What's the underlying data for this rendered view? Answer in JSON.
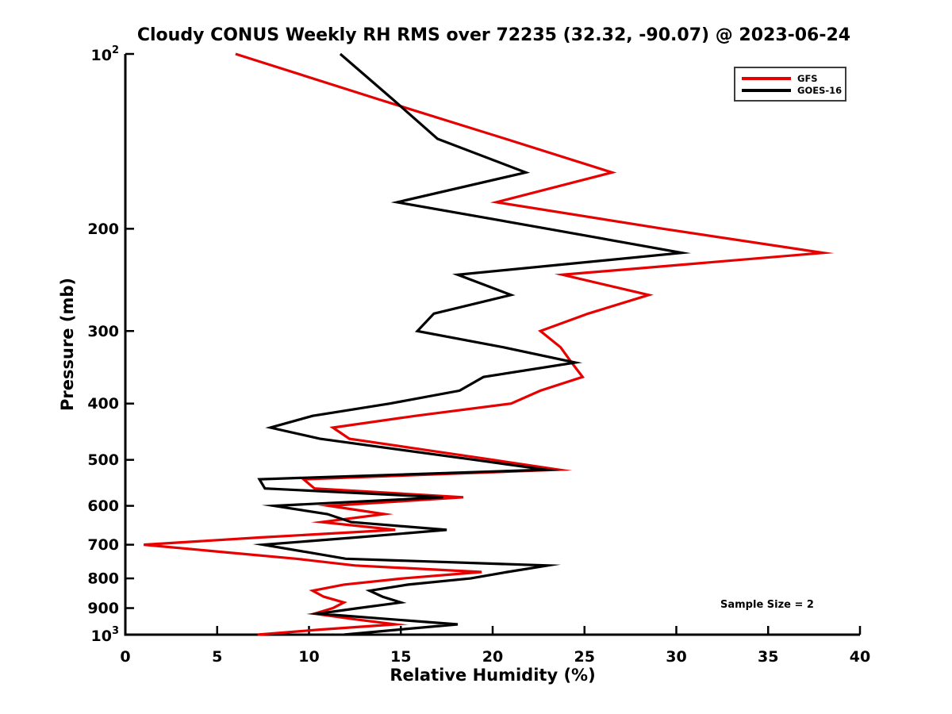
{
  "title": "Cloudy CONUS Weekly RH RMS over 72235 (32.32, -90.07) @ 2023-06-24",
  "annotation": "Sample Size = 2",
  "axes": {
    "x": {
      "label": "Relative Humidity (%)",
      "range": [
        0,
        40
      ],
      "ticks": [
        0,
        5,
        10,
        15,
        20,
        25,
        30,
        35,
        40
      ],
      "tick_labels": [
        "0",
        "5",
        "10",
        "15",
        "20",
        "25",
        "30",
        "35",
        "40"
      ]
    },
    "y": {
      "label": "Pressure (mb)",
      "scale": "log",
      "inverted": true,
      "range": [
        100,
        1000
      ],
      "ticks": [
        100,
        200,
        300,
        400,
        500,
        600,
        700,
        800,
        900,
        1000
      ],
      "tick_label_values": [
        200,
        300,
        400,
        500,
        600,
        700,
        800,
        900
      ],
      "tick_labels": [
        "200",
        "300",
        "400",
        "500",
        "600",
        "700",
        "800",
        "900"
      ],
      "top_tick": {
        "base": "10",
        "exp": "2"
      },
      "bottom_tick": {
        "base": "10",
        "exp": "3"
      }
    }
  },
  "legend": {
    "position": "top-right",
    "items": [
      {
        "label": "GFS",
        "color": "#e60000"
      },
      {
        "label": "GOES-16",
        "color": "#000000"
      }
    ]
  },
  "colors": {
    "background": "#ffffff",
    "axis": "#000000",
    "text": "#000000"
  },
  "chart_data": {
    "type": "line",
    "title": "Cloudy CONUS Weekly RH RMS over 72235 (32.32, -90.07) @ 2023-06-24",
    "xlabel": "Relative Humidity (%)",
    "ylabel": "Pressure (mb)",
    "xlim": [
      0,
      40
    ],
    "ylim_mb": [
      100,
      1000
    ],
    "y_scale": "log-inverted",
    "grid": false,
    "legend_position": "top-right",
    "sample_size": 2,
    "pressure_levels_mb": [
      100,
      120,
      140,
      160,
      180,
      200,
      220,
      240,
      260,
      280,
      300,
      320,
      340,
      360,
      380,
      400,
      420,
      440,
      460,
      480,
      500,
      520,
      540,
      560,
      580,
      600,
      620,
      640,
      660,
      680,
      700,
      720,
      740,
      760,
      780,
      800,
      820,
      840,
      860,
      880,
      900,
      920,
      940,
      960,
      980,
      1000
    ],
    "series": [
      {
        "name": "GFS",
        "color": "#e60000",
        "rh_percent": [
          6.0,
          13.9,
          20.7,
          26.5,
          20.2,
          29.3,
          38.0,
          23.8,
          28.5,
          25.2,
          22.6,
          23.7,
          24.3,
          24.9,
          22.6,
          21.0,
          15.8,
          11.3,
          12.2,
          16.2,
          20.0,
          23.6,
          9.7,
          10.3,
          18.4,
          11.1,
          14.1,
          10.7,
          14.7,
          7.4,
          1.0,
          5.2,
          9.3,
          12.5,
          19.4,
          15.1,
          11.9,
          10.2,
          10.8,
          11.9,
          11.3,
          10.3,
          12.4,
          14.7,
          10.6,
          7.2
        ]
      },
      {
        "name": "GOES-16",
        "color": "#000000",
        "rh_percent": [
          11.7,
          14.6,
          17.0,
          21.8,
          14.8,
          23.0,
          30.3,
          18.1,
          21.0,
          16.8,
          15.9,
          20.6,
          24.5,
          19.5,
          18.2,
          14.4,
          10.2,
          7.9,
          10.6,
          14.9,
          19.0,
          22.9,
          7.3,
          7.6,
          17.3,
          8.1,
          11.0,
          12.3,
          17.5,
          12.6,
          7.5,
          9.8,
          12.0,
          23.0,
          20.8,
          18.8,
          15.4,
          13.3,
          14.0,
          15.0,
          12.7,
          10.5,
          14.3,
          18.1,
          14.9,
          11.9
        ]
      }
    ]
  }
}
